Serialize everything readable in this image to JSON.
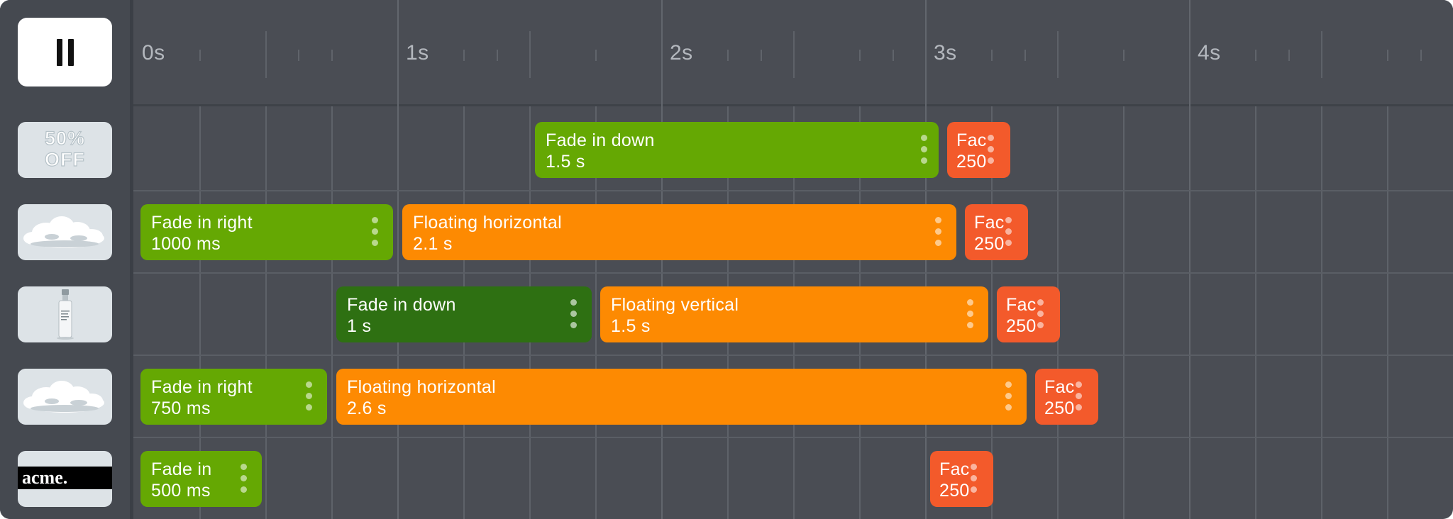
{
  "controls": {
    "pause_icon": "pause-icon"
  },
  "timeline": {
    "tick_labels": [
      "0s",
      "1s",
      "2s",
      "3s",
      "4s"
    ]
  },
  "layers": [
    {
      "thumbnail": {
        "kind": "badge",
        "text_line1": "50%",
        "text_line2": "OFF"
      },
      "clips": [
        {
          "name": "Fade in down",
          "duration": "1.5 s",
          "color": "#65a803"
        },
        {
          "name": "Fac",
          "duration": "250",
          "color": "#f35a2b"
        }
      ]
    },
    {
      "thumbnail": {
        "kind": "cloud"
      },
      "clips": [
        {
          "name": "Fade in right",
          "duration": "1000 ms",
          "color": "#65a803"
        },
        {
          "name": "Floating horizontal",
          "duration": "2.1 s",
          "color": "#fd8a02"
        },
        {
          "name": "Fac",
          "duration": "250",
          "color": "#f35a2b"
        }
      ]
    },
    {
      "thumbnail": {
        "kind": "bottle"
      },
      "clips": [
        {
          "name": "Fade in down",
          "duration": "1 s",
          "color": "#2e7012",
          "selected": true
        },
        {
          "name": "Floating vertical",
          "duration": "1.5 s",
          "color": "#fd8a02"
        },
        {
          "name": "Fac",
          "duration": "250",
          "color": "#f35a2b"
        }
      ]
    },
    {
      "thumbnail": {
        "kind": "cloud"
      },
      "clips": [
        {
          "name": "Fade in right",
          "duration": "750 ms",
          "color": "#65a803"
        },
        {
          "name": "Floating horizontal",
          "duration": "2.6 s",
          "color": "#fd8a02"
        },
        {
          "name": "Fac",
          "duration": "250",
          "color": "#f35a2b"
        }
      ]
    },
    {
      "thumbnail": {
        "kind": "logo",
        "text": "acme."
      },
      "clips": [
        {
          "name": "Fade in",
          "duration": "500 ms",
          "color": "#65a803"
        },
        {
          "name": "Fac",
          "duration": "250",
          "color": "#f35a2b"
        }
      ]
    }
  ],
  "colors": {
    "background": "#4a4d54",
    "entrance": "#65a803",
    "entrance_selected": "#2e7012",
    "loop": "#fd8a02",
    "exit": "#f35a2b"
  }
}
